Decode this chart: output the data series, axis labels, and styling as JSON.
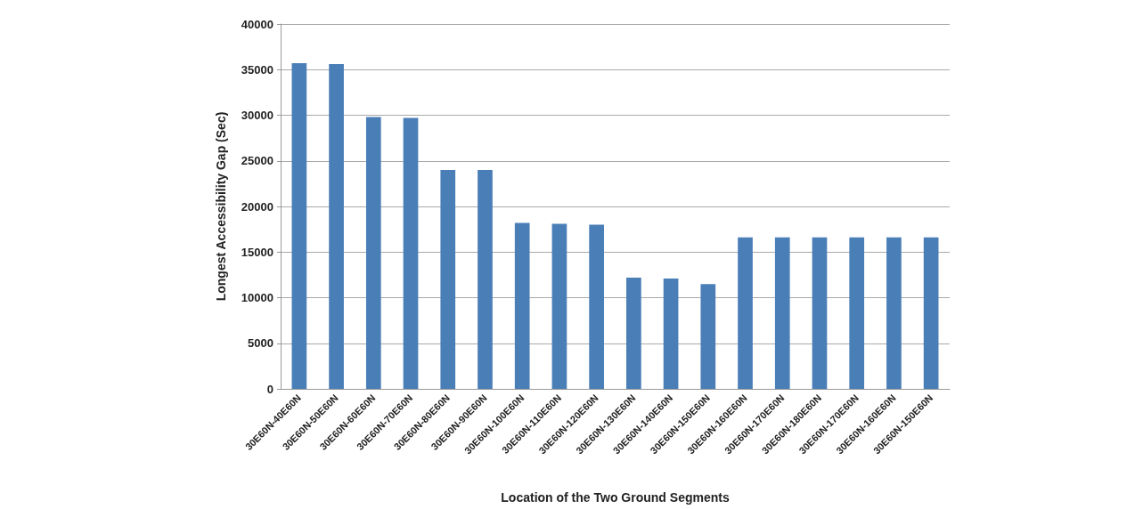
{
  "chart_data": {
    "type": "bar",
    "xlabel": "Location of the Two Ground Segments",
    "ylabel": "Longest Accessibility Gap (Sec)",
    "categories": [
      "30E60N-40E60N",
      "30E60N-50E60N",
      "30E60N-60E60N",
      "30E60N-70E60N",
      "30E60N-80E60N",
      "30E60N-90E60N",
      "30E60N-100E60N",
      "30E60N-110E60N",
      "30E60N-120E60N",
      "30E60N-130E60N",
      "30E60N-140E60N",
      "30E60N-150E60N",
      "30E60N-160E60N",
      "30E60N-170E60N",
      "30E60N-180E60N",
      "30E60N-170E60N",
      "30E60N-160E60N",
      "30E60N-150E60N"
    ],
    "values": [
      35700,
      35600,
      29800,
      29700,
      24000,
      24000,
      18200,
      18100,
      18000,
      12200,
      12100,
      11500,
      16600,
      16600,
      16600,
      16600,
      16600,
      16600
    ],
    "color": "#4a7eb7",
    "ylim": [
      0,
      40000
    ],
    "yticks": [
      0,
      5000,
      10000,
      15000,
      20000,
      25000,
      30000,
      35000,
      40000
    ],
    "grid": "y"
  }
}
